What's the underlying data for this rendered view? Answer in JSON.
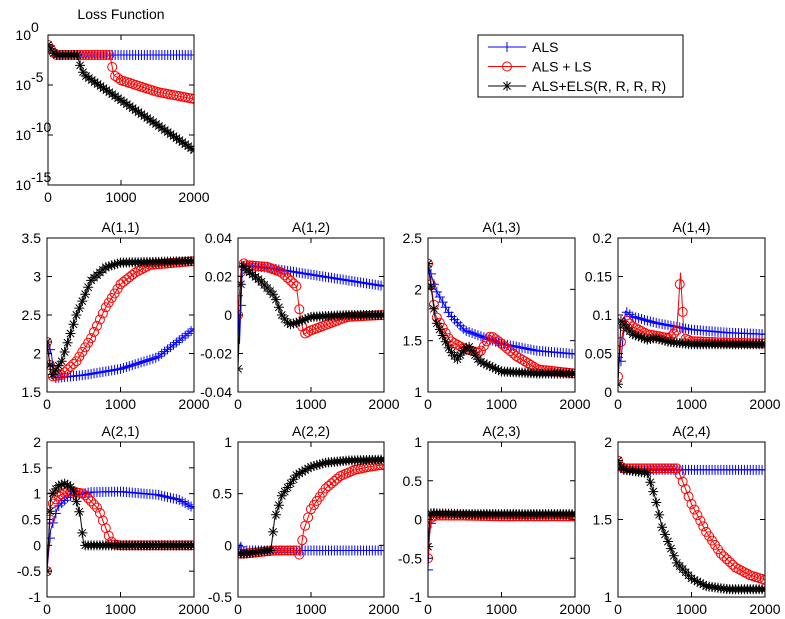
{
  "chart_data": [
    {
      "type": "line",
      "title": "Loss Function",
      "yscale": "log",
      "xlim": [
        0,
        2000
      ],
      "ylim": [
        1e-15,
        1
      ],
      "xticks": [
        "0",
        "1000",
        "2000"
      ],
      "yticks": [
        {
          "base": "10",
          "exp": "-15"
        },
        {
          "base": "10",
          "exp": "-10"
        },
        {
          "base": "10",
          "exp": "-5"
        },
        {
          "base": "10",
          "exp": "0"
        }
      ],
      "series": [
        {
          "name": "ALS",
          "x": [
            0,
            100,
            500,
            1000,
            1500,
            2000
          ],
          "y": [
            0.1,
            0.01,
            0.01,
            0.01,
            0.01,
            0.01
          ]
        },
        {
          "name": "ALS + LS",
          "x": [
            0,
            100,
            500,
            850,
            900,
            1000,
            1500,
            2000
          ],
          "y": [
            0.1,
            0.01,
            0.01,
            0.01,
            0.0001,
            3e-05,
            2e-06,
            4e-07
          ]
        },
        {
          "name": "ALS+ELS(R, R, R, R)",
          "x": [
            0,
            100,
            400,
            450,
            500,
            1000,
            1500,
            2000
          ],
          "y": [
            0.1,
            0.01,
            0.01,
            0.0005,
            0.0001,
            3e-07,
            1e-09,
            3e-12
          ]
        }
      ]
    },
    {
      "type": "line",
      "title": "A(1,1)",
      "xlim": [
        0,
        2000
      ],
      "ylim": [
        1.5,
        3.5
      ],
      "xticks": [
        "0",
        "1000",
        "2000"
      ],
      "yticks": [
        "1.5",
        "2",
        "2.5",
        "3",
        "3.5"
      ],
      "series": [
        {
          "name": "ALS",
          "x": [
            0,
            60,
            100,
            500,
            1000,
            1500,
            2000
          ],
          "y": [
            2.15,
            2.0,
            1.68,
            1.72,
            1.8,
            1.95,
            2.32
          ]
        },
        {
          "name": "ALS + LS",
          "x": [
            0,
            60,
            200,
            400,
            600,
            800,
            1000,
            1200,
            1400,
            2000
          ],
          "y": [
            2.15,
            1.7,
            1.72,
            1.9,
            2.2,
            2.6,
            2.9,
            3.05,
            3.15,
            3.2
          ]
        },
        {
          "name": "ALS+ELS(R, R, R, R)",
          "x": [
            0,
            60,
            200,
            400,
            600,
            800,
            1000,
            2000
          ],
          "y": [
            2.15,
            1.7,
            1.9,
            2.5,
            2.95,
            3.12,
            3.18,
            3.2
          ]
        }
      ]
    },
    {
      "type": "line",
      "title": "A(1,2)",
      "xlim": [
        0,
        2000
      ],
      "ylim": [
        -0.04,
        0.04
      ],
      "xticks": [
        "0",
        "1000",
        "2000"
      ],
      "yticks": [
        "-0.04",
        "-0.02",
        "0",
        "0.02",
        "0.04"
      ],
      "series": [
        {
          "name": "ALS",
          "x": [
            0,
            20,
            60,
            100,
            500,
            1000,
            1500,
            2000
          ],
          "y": [
            0.01,
            -0.015,
            0.025,
            0.026,
            0.024,
            0.021,
            0.018,
            0.015
          ]
        },
        {
          "name": "ALS + LS",
          "x": [
            0,
            50,
            100,
            400,
            600,
            800,
            850,
            900,
            1000,
            1500,
            2000
          ],
          "y": [
            0.0,
            0.028,
            0.026,
            0.025,
            0.022,
            0.015,
            0.0,
            -0.01,
            -0.008,
            -0.001,
            0.0
          ]
        },
        {
          "name": "ALS+ELS(R, R, R, R)",
          "x": [
            0,
            50,
            100,
            300,
            500,
            600,
            700,
            800,
            1000,
            1500,
            2000
          ],
          "y": [
            -0.028,
            0.027,
            0.024,
            0.018,
            0.01,
            0.0,
            -0.005,
            -0.004,
            -0.001,
            0.0,
            0.0
          ]
        }
      ]
    },
    {
      "type": "line",
      "title": "A(1,3)",
      "xlim": [
        0,
        2000
      ],
      "ylim": [
        1,
        2.5
      ],
      "xticks": [
        "0",
        "1000",
        "2000"
      ],
      "yticks": [
        "1",
        "1.5",
        "2",
        "2.5"
      ],
      "series": [
        {
          "name": "ALS",
          "x": [
            0,
            100,
            300,
            500,
            1000,
            1500,
            2000
          ],
          "y": [
            2.25,
            2.0,
            1.75,
            1.6,
            1.47,
            1.4,
            1.37
          ]
        },
        {
          "name": "ALS + LS",
          "x": [
            0,
            100,
            300,
            500,
            700,
            850,
            950,
            1200,
            1500,
            2000
          ],
          "y": [
            2.25,
            1.75,
            1.5,
            1.42,
            1.38,
            1.55,
            1.5,
            1.35,
            1.22,
            1.18
          ]
        },
        {
          "name": "ALS+ELS(R, R, R, R)",
          "x": [
            0,
            100,
            300,
            400,
            500,
            550,
            700,
            1000,
            1500,
            2000
          ],
          "y": [
            2.25,
            1.7,
            1.4,
            1.32,
            1.42,
            1.45,
            1.3,
            1.2,
            1.18,
            1.18
          ]
        }
      ]
    },
    {
      "type": "line",
      "title": "A(1,4)",
      "xlim": [
        0,
        2000
      ],
      "ylim": [
        0,
        0.2
      ],
      "xticks": [
        "0",
        "1000",
        "2000"
      ],
      "yticks": [
        "0",
        "0.05",
        "0.1",
        "0.15",
        "0.2"
      ],
      "series": [
        {
          "name": "ALS",
          "x": [
            0,
            40,
            100,
            200,
            500,
            1000,
            1500,
            2000
          ],
          "y": [
            0.045,
            0.04,
            0.105,
            0.098,
            0.09,
            0.081,
            0.077,
            0.075
          ]
        },
        {
          "name": "ALS + LS",
          "x": [
            0,
            40,
            100,
            200,
            400,
            700,
            800,
            850,
            900,
            1000,
            1500,
            2000
          ],
          "y": [
            0.02,
            0.065,
            0.095,
            0.085,
            0.075,
            0.07,
            0.08,
            0.155,
            0.07,
            0.066,
            0.064,
            0.063
          ]
        },
        {
          "name": "ALS+ELS(R, R, R, R)",
          "x": [
            0,
            40,
            100,
            200,
            400,
            500,
            700,
            1000,
            2000
          ],
          "y": [
            0.01,
            0.092,
            0.085,
            0.075,
            0.068,
            0.07,
            0.065,
            0.062,
            0.062
          ]
        }
      ]
    },
    {
      "type": "line",
      "title": "A(2,1)",
      "xlim": [
        0,
        2000
      ],
      "ylim": [
        -1,
        2
      ],
      "xticks": [
        "0",
        "1000",
        "2000"
      ],
      "yticks": [
        "-1",
        "-0.5",
        "0",
        "0.5",
        "1",
        "1.5",
        "2"
      ],
      "series": [
        {
          "name": "ALS",
          "x": [
            0,
            50,
            150,
            300,
            600,
            1000,
            1500,
            1800,
            2000
          ],
          "y": [
            -0.5,
            0.3,
            0.75,
            0.95,
            1.03,
            1.04,
            0.98,
            0.88,
            0.72
          ]
        },
        {
          "name": "ALS + LS",
          "x": [
            0,
            50,
            150,
            300,
            500,
            700,
            850,
            900,
            1000,
            2000
          ],
          "y": [
            -0.5,
            0.75,
            0.95,
            1.05,
            1.0,
            0.7,
            0.15,
            0.02,
            0.0,
            0.0
          ]
        },
        {
          "name": "ALS+ELS(R, R, R, R)",
          "x": [
            0,
            50,
            150,
            250,
            350,
            450,
            500,
            700,
            2000
          ],
          "y": [
            -0.5,
            0.95,
            1.15,
            1.2,
            1.1,
            0.6,
            0.0,
            0.0,
            0.0
          ]
        }
      ]
    },
    {
      "type": "line",
      "title": "A(2,2)",
      "xlim": [
        0,
        2000
      ],
      "ylim": [
        -0.5,
        1
      ],
      "xticks": [
        "0",
        "1000",
        "2000"
      ],
      "yticks": [
        "-0.5",
        "0",
        "0.5",
        "1"
      ],
      "series": [
        {
          "name": "ALS",
          "x": [
            0,
            30,
            60,
            100,
            500,
            1000,
            1500,
            2000
          ],
          "y": [
            -0.08,
            0.02,
            -0.08,
            -0.05,
            -0.05,
            -0.05,
            -0.05,
            -0.05
          ]
        },
        {
          "name": "ALS + LS",
          "x": [
            0,
            100,
            500,
            800,
            850,
            900,
            1000,
            1200,
            1400,
            1600,
            1800,
            2000
          ],
          "y": [
            -0.08,
            -0.08,
            -0.05,
            -0.05,
            -0.1,
            0.15,
            0.35,
            0.55,
            0.67,
            0.73,
            0.76,
            0.78
          ]
        },
        {
          "name": "ALS+ELS(R, R, R, R)",
          "x": [
            0,
            100,
            400,
            450,
            500,
            600,
            800,
            1000,
            1200,
            1500,
            2000
          ],
          "y": [
            -0.08,
            -0.08,
            -0.05,
            -0.05,
            0.25,
            0.48,
            0.68,
            0.76,
            0.8,
            0.82,
            0.83
          ]
        }
      ]
    },
    {
      "type": "line",
      "title": "A(2,3)",
      "xlim": [
        0,
        2000
      ],
      "ylim": [
        -1,
        1
      ],
      "xticks": [
        "0",
        "1000",
        "2000"
      ],
      "yticks": [
        "-1",
        "-0.5",
        "0",
        "0.5",
        "1"
      ],
      "series": [
        {
          "name": "ALS",
          "x": [
            0,
            20,
            60,
            100,
            500,
            1000,
            1500,
            2000
          ],
          "y": [
            -0.65,
            -0.2,
            0.1,
            0.07,
            0.06,
            0.06,
            0.06,
            0.06
          ]
        },
        {
          "name": "ALS + LS",
          "x": [
            0,
            40,
            100,
            500,
            1000,
            1500,
            2000
          ],
          "y": [
            -0.5,
            0.02,
            0.05,
            0.05,
            0.04,
            0.04,
            0.04
          ]
        },
        {
          "name": "ALS+ELS(R, R, R, R)",
          "x": [
            0,
            30,
            80,
            500,
            1000,
            2000
          ],
          "y": [
            -0.35,
            0.08,
            0.08,
            0.07,
            0.07,
            0.07
          ]
        }
      ]
    },
    {
      "type": "line",
      "title": "A(2,4)",
      "xlim": [
        0,
        2000
      ],
      "ylim": [
        1,
        2
      ],
      "xticks": [
        "0",
        "1000",
        "2000"
      ],
      "yticks": [
        "1",
        "1.5",
        "2"
      ],
      "series": [
        {
          "name": "ALS",
          "x": [
            0,
            50,
            100,
            500,
            1000,
            1500,
            2000
          ],
          "y": [
            1.88,
            1.82,
            1.82,
            1.82,
            1.82,
            1.82,
            1.82
          ]
        },
        {
          "name": "ALS + LS",
          "x": [
            0,
            50,
            100,
            500,
            800,
            850,
            1000,
            1200,
            1400,
            1600,
            1800,
            2000
          ],
          "y": [
            1.88,
            1.83,
            1.83,
            1.83,
            1.83,
            1.78,
            1.6,
            1.42,
            1.28,
            1.19,
            1.14,
            1.11
          ]
        },
        {
          "name": "ALS+ELS(R, R, R, R)",
          "x": [
            0,
            50,
            100,
            400,
            500,
            600,
            800,
            1000,
            1200,
            1500,
            2000
          ],
          "y": [
            1.88,
            1.83,
            1.82,
            1.8,
            1.65,
            1.45,
            1.22,
            1.12,
            1.07,
            1.05,
            1.05
          ]
        }
      ]
    }
  ],
  "legend": {
    "placement": "top-right",
    "entries": [
      {
        "label": "ALS",
        "color": "#0000ff",
        "marker": "plus"
      },
      {
        "label": "ALS + LS",
        "color": "#ff0000",
        "marker": "circle"
      },
      {
        "label": "ALS+ELS(R, R, R, R)",
        "color": "#000000",
        "marker": "star"
      }
    ]
  }
}
